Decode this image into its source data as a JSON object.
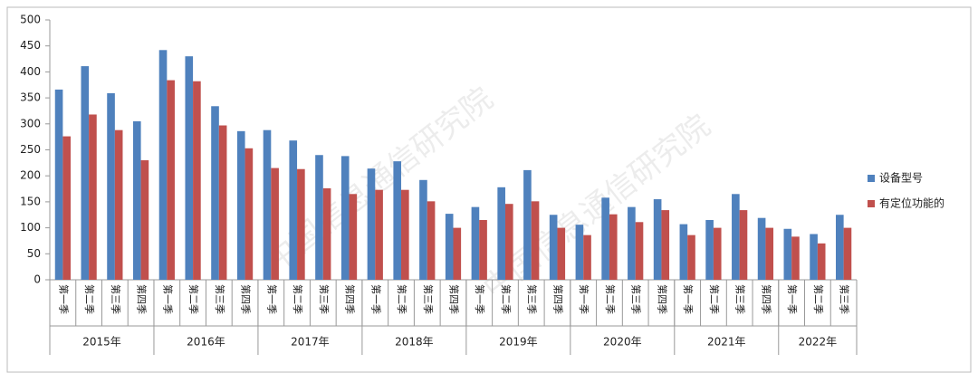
{
  "chart_data": {
    "type": "bar",
    "watermark": "中国信息通信研究院",
    "category_groups": [
      {
        "name": "2015年",
        "categories": [
          "第一季",
          "第二季",
          "第三季",
          "第四季"
        ]
      },
      {
        "name": "2016年",
        "categories": [
          "第一季",
          "第二季",
          "第三季",
          "第四季"
        ]
      },
      {
        "name": "2017年",
        "categories": [
          "第一季",
          "第二季",
          "第三季",
          "第四季"
        ]
      },
      {
        "name": "2018年",
        "categories": [
          "第一季",
          "第二季",
          "第三季",
          "第四季"
        ]
      },
      {
        "name": "2019年",
        "categories": [
          "第一季",
          "第二季",
          "第三季",
          "第四季"
        ]
      },
      {
        "name": "2020年",
        "categories": [
          "第一季",
          "第二季",
          "第三季",
          "第四季"
        ]
      },
      {
        "name": "2021年",
        "categories": [
          "第一季",
          "第二季",
          "第三季",
          "第四季"
        ]
      },
      {
        "name": "2022年",
        "categories": [
          "第一季",
          "第二季",
          "第三季"
        ]
      }
    ],
    "series": [
      {
        "name": "设备型号",
        "color": "#4f81bd",
        "values": [
          366,
          411,
          359,
          305,
          442,
          430,
          334,
          286,
          288,
          268,
          240,
          238,
          214,
          228,
          192,
          127,
          140,
          178,
          211,
          125,
          106,
          158,
          140,
          155,
          107,
          115,
          165,
          119,
          98,
          88,
          125
        ]
      },
      {
        "name": "有定位功能的",
        "color": "#c0504d",
        "values": [
          276,
          318,
          288,
          230,
          384,
          382,
          297,
          253,
          215,
          213,
          176,
          165,
          173,
          173,
          151,
          100,
          115,
          146,
          151,
          100,
          86,
          126,
          111,
          134,
          86,
          100,
          134,
          100,
          83,
          70,
          100
        ]
      }
    ],
    "ylim": [
      0,
      500
    ],
    "yticks": [
      0,
      50,
      100,
      150,
      200,
      250,
      300,
      350,
      400,
      450,
      500
    ],
    "grid": false,
    "legend": "right"
  }
}
